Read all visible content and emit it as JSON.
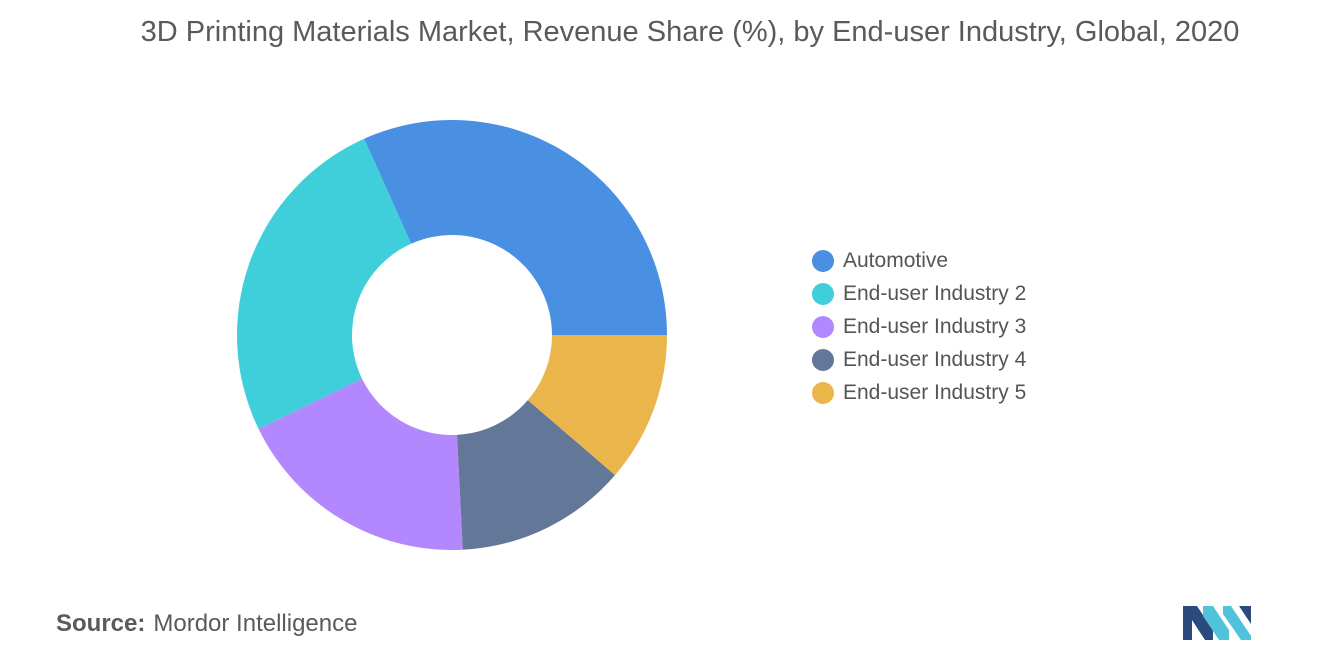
{
  "chart_data": {
    "type": "pie",
    "title": "3D Printing Materials Market, Revenue Share (%), by End-user Industry, Global, 2020",
    "categories": [
      "Automotive",
      "End-user Industry 2",
      "End-user Industry 3",
      "End-user Industry 4",
      "End-user Industry 5"
    ],
    "values": [
      31.7,
      25.5,
      18.6,
      12.9,
      11.3
    ],
    "colors": [
      "#4a90e2",
      "#3ecfda",
      "#b388ff",
      "#637799",
      "#eab64c"
    ],
    "donut": true,
    "legend_position": "right"
  },
  "source": {
    "label": "Source:",
    "text": "Mordor Intelligence"
  },
  "logo": {
    "icon": "mordor-intelligence-logo",
    "colors": [
      "#2b4b7e",
      "#4fc3d9"
    ]
  }
}
